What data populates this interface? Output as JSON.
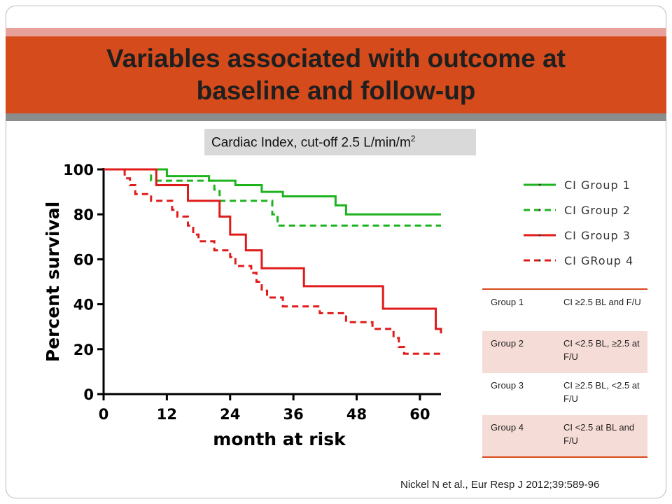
{
  "slide": {
    "title": "Variables associated with outcome at baseline and follow-up",
    "subtitle_text": "Cardiac Index, cut-off 2.5 L/min/m",
    "subtitle_sup": "2",
    "citation": "Nickel N et al., Eur Resp J 2012;39:589-96"
  },
  "colors": {
    "green": "#1db31d",
    "red": "#e01b1b",
    "title_bar": "#d64b1b"
  },
  "legend": [
    {
      "label": "CI Group 1",
      "color": "#1db31d",
      "dash": false
    },
    {
      "label": "CI Group 2",
      "color": "#1db31d",
      "dash": true
    },
    {
      "label": "CI Group 3",
      "color": "#e01b1b",
      "dash": false
    },
    {
      "label": "CI GRoup 4",
      "color": "#e01b1b",
      "dash": true
    }
  ],
  "groups_table": [
    {
      "group": "Group 1",
      "definition": "CI ≥2.5 BL and F/U"
    },
    {
      "group": "Group 2",
      "definition": "CI <2.5 BL, ≥2.5 at F/U"
    },
    {
      "group": "Group 3",
      "definition": "CI ≥2.5 BL, <2.5 at F/U"
    },
    {
      "group": "Group 4",
      "definition": "CI <2.5 at BL and F/U"
    }
  ],
  "chart_data": {
    "type": "line",
    "step": true,
    "xlabel": "month at risk",
    "ylabel": "Percent survival",
    "xlim": [
      0,
      64
    ],
    "ylim": [
      0,
      100
    ],
    "xticks": [
      0,
      12,
      24,
      36,
      48,
      60
    ],
    "yticks": [
      0,
      20,
      40,
      60,
      80,
      100
    ],
    "series": [
      {
        "name": "CI Group 1",
        "color": "#1db31d",
        "dash": false,
        "points": [
          [
            0,
            100
          ],
          [
            12,
            100
          ],
          [
            12,
            97
          ],
          [
            20,
            97
          ],
          [
            20,
            95
          ],
          [
            25,
            95
          ],
          [
            25,
            93
          ],
          [
            30,
            93
          ],
          [
            30,
            90
          ],
          [
            34,
            90
          ],
          [
            34,
            88
          ],
          [
            44,
            88
          ],
          [
            44,
            84
          ],
          [
            46,
            84
          ],
          [
            46,
            80
          ],
          [
            64,
            80
          ]
        ]
      },
      {
        "name": "CI Group 2",
        "color": "#1db31d",
        "dash": true,
        "points": [
          [
            0,
            100
          ],
          [
            9,
            100
          ],
          [
            9,
            95
          ],
          [
            21,
            95
          ],
          [
            21,
            91
          ],
          [
            22,
            91
          ],
          [
            22,
            86
          ],
          [
            32,
            86
          ],
          [
            32,
            80
          ],
          [
            33,
            80
          ],
          [
            33,
            75
          ],
          [
            64,
            75
          ]
        ]
      },
      {
        "name": "CI Group 3",
        "color": "#e01b1b",
        "dash": false,
        "points": [
          [
            0,
            100
          ],
          [
            10,
            100
          ],
          [
            10,
            93
          ],
          [
            16,
            93
          ],
          [
            16,
            86
          ],
          [
            22,
            86
          ],
          [
            22,
            79
          ],
          [
            24,
            79
          ],
          [
            24,
            71
          ],
          [
            27,
            71
          ],
          [
            27,
            64
          ],
          [
            30,
            64
          ],
          [
            30,
            56
          ],
          [
            38,
            56
          ],
          [
            38,
            48
          ],
          [
            53,
            48
          ],
          [
            53,
            38
          ],
          [
            63,
            38
          ],
          [
            63,
            29
          ],
          [
            64,
            29
          ],
          [
            64,
            27
          ]
        ]
      },
      {
        "name": "CI GRoup 4",
        "color": "#e01b1b",
        "dash": true,
        "points": [
          [
            0,
            100
          ],
          [
            4,
            100
          ],
          [
            4,
            96
          ],
          [
            5,
            96
          ],
          [
            5,
            93
          ],
          [
            6,
            93
          ],
          [
            6,
            89
          ],
          [
            9,
            89
          ],
          [
            9,
            86
          ],
          [
            13,
            86
          ],
          [
            13,
            82
          ],
          [
            14,
            82
          ],
          [
            14,
            79
          ],
          [
            16,
            79
          ],
          [
            16,
            75
          ],
          [
            17,
            75
          ],
          [
            17,
            71
          ],
          [
            18,
            71
          ],
          [
            18,
            68
          ],
          [
            21,
            68
          ],
          [
            21,
            64
          ],
          [
            24,
            64
          ],
          [
            24,
            61
          ],
          [
            25,
            61
          ],
          [
            25,
            57
          ],
          [
            28,
            57
          ],
          [
            28,
            54
          ],
          [
            29,
            54
          ],
          [
            29,
            50
          ],
          [
            30,
            50
          ],
          [
            30,
            46
          ],
          [
            31,
            46
          ],
          [
            31,
            43
          ],
          [
            34,
            43
          ],
          [
            34,
            39
          ],
          [
            41,
            39
          ],
          [
            41,
            36
          ],
          [
            46,
            36
          ],
          [
            46,
            32
          ],
          [
            51,
            32
          ],
          [
            51,
            29
          ],
          [
            55,
            29
          ],
          [
            55,
            25
          ],
          [
            56,
            25
          ],
          [
            56,
            21
          ],
          [
            57,
            21
          ],
          [
            57,
            18
          ],
          [
            64,
            18
          ]
        ]
      }
    ]
  }
}
